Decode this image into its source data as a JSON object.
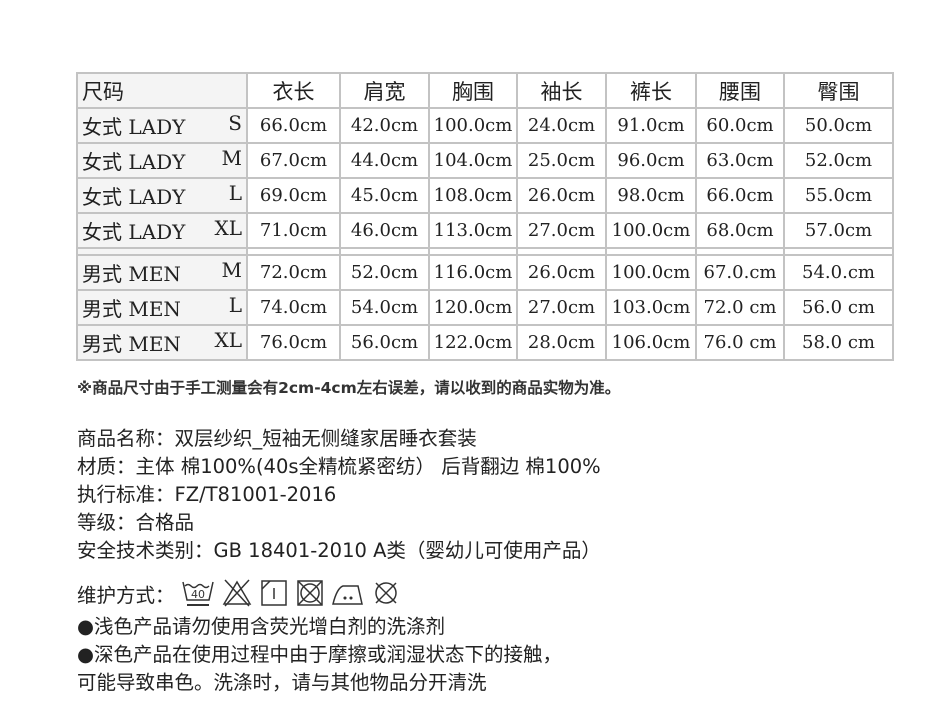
{
  "table": {
    "headers": [
      "尺码",
      "衣长",
      "肩宽",
      "胸围",
      "袖长",
      "裤长",
      "腰围",
      "臀围"
    ],
    "rows": [
      {
        "label": "女式 LADY",
        "size": "S",
        "values": [
          "66.0cm",
          "42.0cm",
          "100.0cm",
          "24.0cm",
          "91.0cm",
          "60.0cm",
          "50.0cm"
        ]
      },
      {
        "label": "女式 LADY",
        "size": "M",
        "values": [
          "67.0cm",
          "44.0cm",
          "104.0cm",
          "25.0cm",
          "96.0cm",
          "63.0cm",
          "52.0cm"
        ]
      },
      {
        "label": "女式 LADY",
        "size": "L",
        "values": [
          "69.0cm",
          "45.0cm",
          "108.0cm",
          "26.0cm",
          "98.0cm",
          "66.0cm",
          "55.0cm"
        ]
      },
      {
        "label": "女式 LADY",
        "size": "XL",
        "values": [
          "71.0cm",
          "46.0cm",
          "113.0cm",
          "27.0cm",
          "100.0cm",
          "68.0cm",
          "57.0cm"
        ]
      },
      {
        "label": "男式 MEN",
        "size": "M",
        "values": [
          "72.0cm",
          "52.0cm",
          "116.0cm",
          "26.0cm",
          "100.0cm",
          "67.0.cm",
          "54.0.cm"
        ]
      },
      {
        "label": "男式 MEN",
        "size": "L",
        "values": [
          "74.0cm",
          "54.0cm",
          "120.0cm",
          "27.0cm",
          "103.0cm",
          "72.0 cm",
          "56.0 cm"
        ]
      },
      {
        "label": "男式 MEN",
        "size": "XL",
        "values": [
          "76.0cm",
          "56.0cm",
          "122.0cm",
          "28.0cm",
          "106.0cm",
          "76.0 cm",
          "58.0 cm"
        ]
      }
    ]
  },
  "note": "※商品尺寸由于手工测量会有2cm-4cm左右误差，请以收到的商品实物为准。",
  "info": [
    "商品名称：双层纱织_短袖无侧缝家居睡衣套装",
    "材质：主体 棉100%(40s全精梳紧密纺）  后背翻边 棉100%",
    "执行标准：FZ/T81001-2016",
    "等级：合格品",
    "安全技术类别：GB 18401-2010 A类（婴幼儿可使用产品）"
  ],
  "care": {
    "label": "维护方式：",
    "wash_temp": "40",
    "icons": [
      "wash-40-gentle-icon",
      "do-not-bleach-icon",
      "line-dry-icon",
      "do-not-tumble-dry-icon",
      "iron-low-icon",
      "do-not-dry-clean-icon"
    ],
    "lines": [
      "●浅色产品请勿使用含荧光增白剂的洗涤剂",
      "●深色产品在使用过程中由于摩擦或润湿状态下的接触，",
      "可能导致串色。洗涤时，请与其他物品分开清洗"
    ]
  }
}
